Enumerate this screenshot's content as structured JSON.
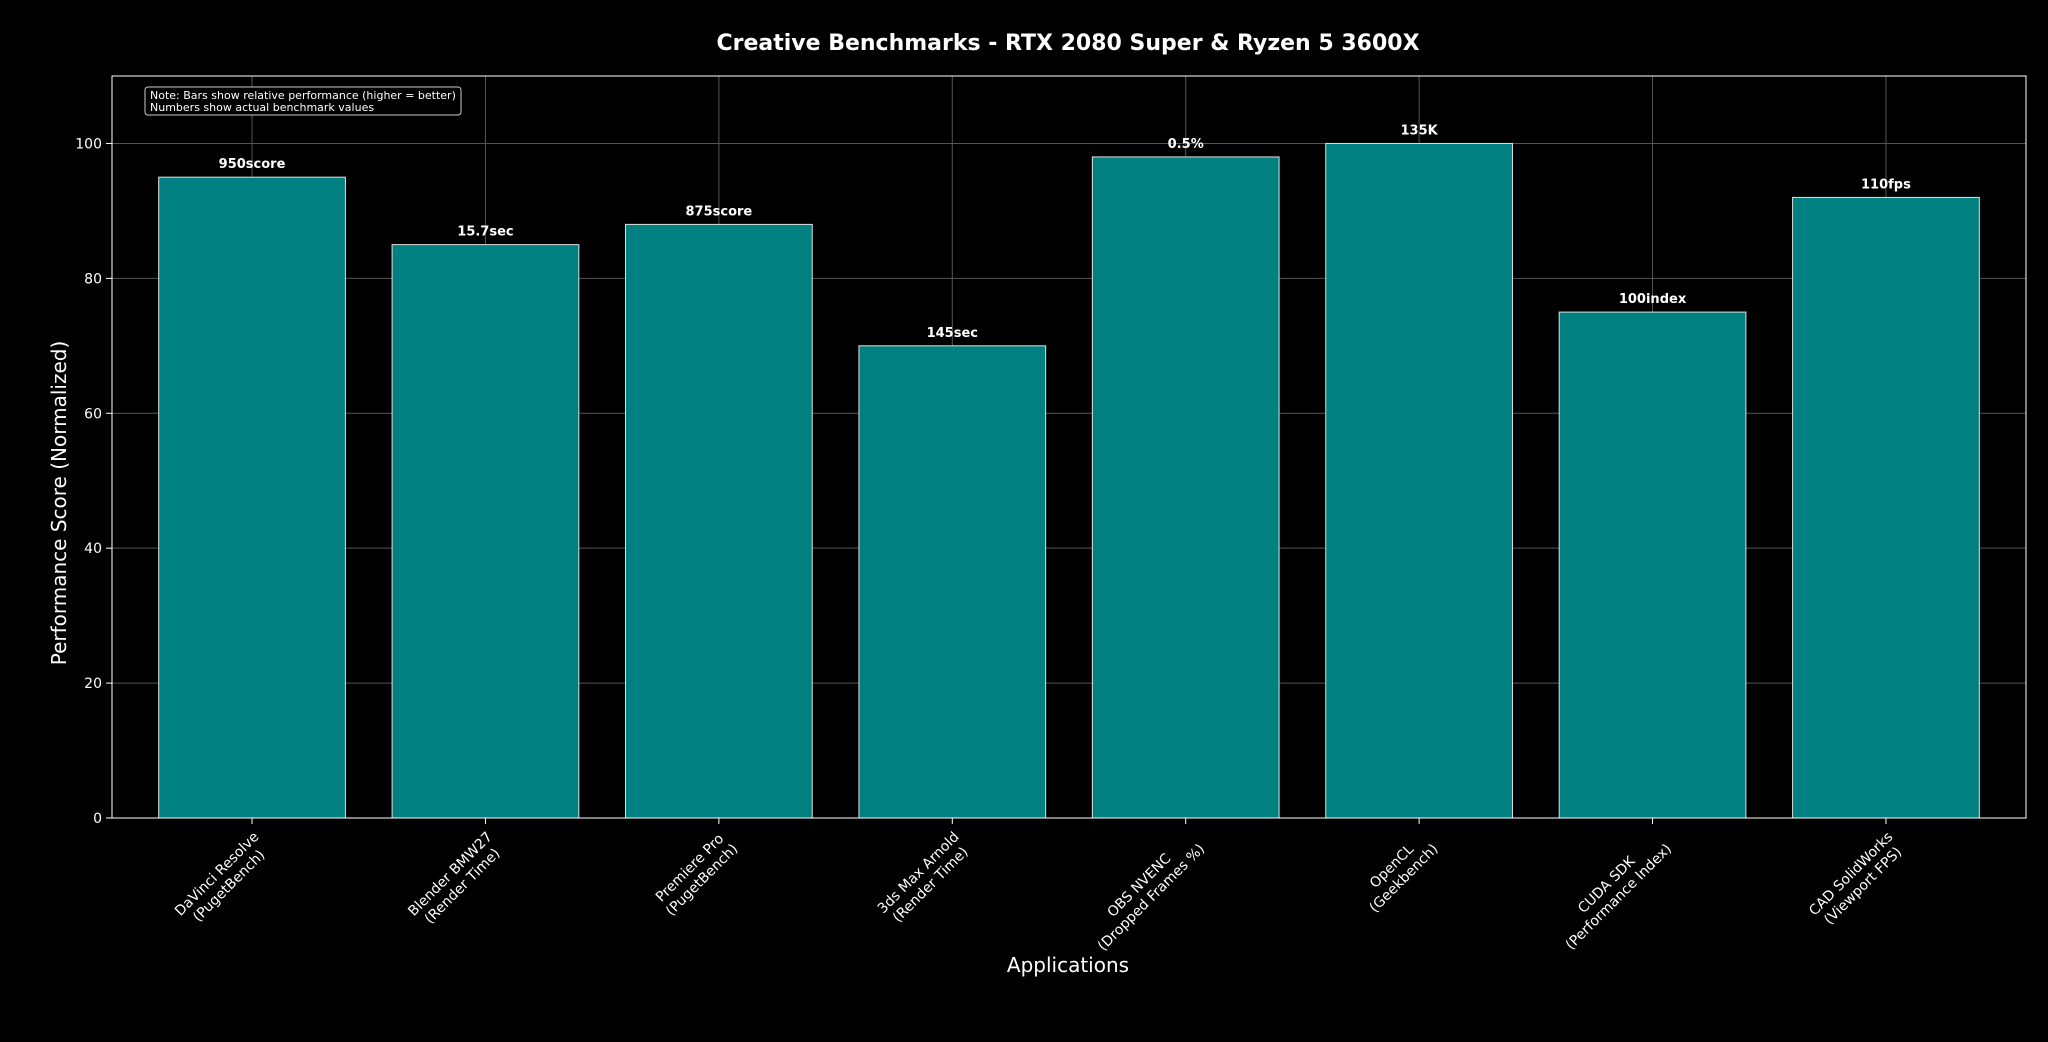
{
  "chart_data": {
    "type": "bar",
    "title": "Creative Benchmarks - RTX 2080 Super & Ryzen 5 3600X",
    "xlabel": "Applications",
    "ylabel": "Performance Score (Normalized)",
    "ylim": [
      0,
      110
    ],
    "yticks": [
      0,
      20,
      40,
      60,
      80,
      100
    ],
    "grid": true,
    "categories": [
      [
        "DaVinci Resolve",
        "(PugetBench)"
      ],
      [
        "Blender BMW27",
        "(Render Time)"
      ],
      [
        "Premiere Pro",
        "(PugetBench)"
      ],
      [
        "3ds Max Arnold",
        "(Render Time)"
      ],
      [
        "OBS NVENC",
        "(Dropped Frames %)"
      ],
      [
        "OpenCL",
        "(Geekbench)"
      ],
      [
        "CUDA SDK",
        "(Performance Index)"
      ],
      [
        "CAD SolidWorks",
        "(Viewport FPS)"
      ]
    ],
    "values": [
      95,
      85,
      88,
      70,
      98,
      100,
      75,
      92
    ],
    "data_labels": [
      "950score",
      "15.7sec",
      "875score",
      "145sec",
      "0.5%",
      "135K",
      "100index",
      "110fps"
    ],
    "note": [
      "Note: Bars show relative performance (higher = better)",
      "Numbers show actual benchmark values"
    ],
    "colors": {
      "background": "#000000",
      "bar_fill": "#008080",
      "bar_edge": "#e0e0e0",
      "grid": "#555555",
      "axis": "#ffffff",
      "text": "#ffffff"
    }
  }
}
